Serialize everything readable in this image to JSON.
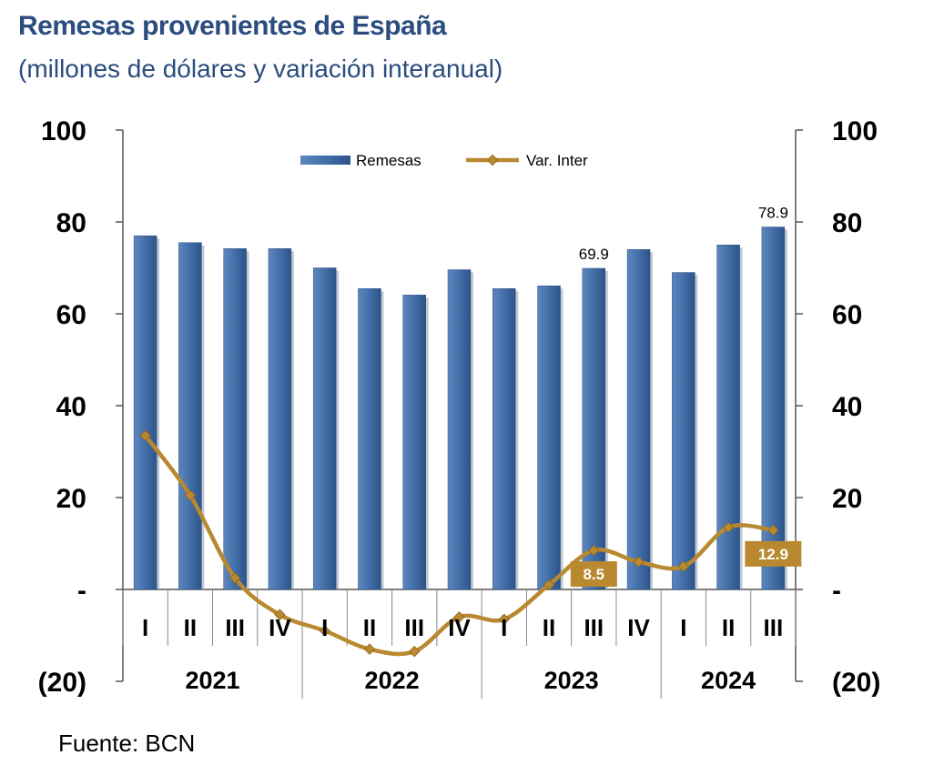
{
  "title": "Remesas provenientes de España",
  "subtitle": "(millones de dólares y variación interanual)",
  "source": "Fuente: BCN",
  "colors": {
    "bar": "#3d679f",
    "line": "#b8892f",
    "title": "#2b4c7e"
  },
  "chart_data": {
    "type": "bar",
    "categories": [
      "I",
      "II",
      "III",
      "IV",
      "I",
      "II",
      "III",
      "IV",
      "I",
      "II",
      "III",
      "IV",
      "I",
      "II",
      "III"
    ],
    "years": [
      {
        "label": "2021",
        "span": 4
      },
      {
        "label": "2022",
        "span": 4
      },
      {
        "label": "2023",
        "span": 4
      },
      {
        "label": "2024",
        "span": 3
      }
    ],
    "series": [
      {
        "name": "Remesas",
        "type": "bar",
        "axis": "left",
        "values": [
          77.0,
          75.5,
          74.2,
          74.2,
          70.0,
          65.5,
          64.1,
          69.6,
          65.5,
          66.1,
          69.9,
          74.0,
          69.0,
          75.0,
          78.9
        ]
      },
      {
        "name": "Var. Inter",
        "type": "line",
        "axis": "right",
        "values": [
          33.5,
          20.5,
          2.5,
          -5.5,
          -9.0,
          -13.0,
          -13.5,
          -6.0,
          -6.5,
          1.0,
          8.5,
          6.0,
          5.0,
          13.5,
          12.9
        ]
      }
    ],
    "bar_data_labels": {
      "10": "69.9",
      "14": "78.9"
    },
    "line_data_labels": {
      "10": "8.5",
      "14": "12.9"
    },
    "y_left": {
      "min": -20,
      "max": 100,
      "ticks": [
        "(20)",
        "-",
        "20",
        "40",
        "60",
        "80",
        "100"
      ]
    },
    "y_right": {
      "min": -20,
      "max": 100,
      "ticks": [
        "(20)",
        "-",
        "20",
        "40",
        "60",
        "80",
        "100"
      ]
    },
    "legend": {
      "position": "top",
      "items": [
        "Remesas",
        "Var. Inter"
      ]
    },
    "grid": false
  }
}
